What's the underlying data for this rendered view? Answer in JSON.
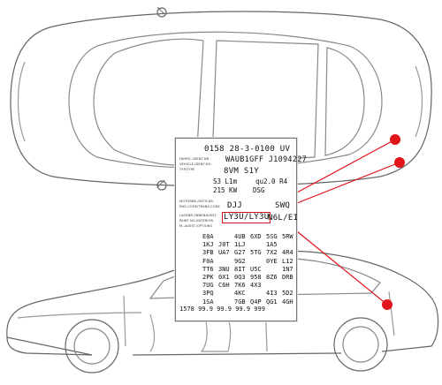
{
  "label": {
    "line1": "0158 28-3-0100  UV",
    "line2": "WAUB1GFF J1094227",
    "line3": "8VM S1Y",
    "line4a": "S3 L1m",
    "line4b": "qu2.0  R4",
    "line5a": "215 KW",
    "line5b": "DSG",
    "line6a": "DJJ",
    "line6b": "SWQ",
    "line7a": "LY3U/LY3U",
    "line7b": "N6L/EI",
    "tiny1": "FAHRG.-IDENT-NR.",
    "tiny2": "VEHICLE-IDENT-NO.",
    "tiny3": "TYP/TYPE",
    "tiny4": "MOTORKB./GETR.KB.",
    "tiny5": "ENG.CODE/TRANS.CODE",
    "tiny6": "LACKNR./INNENAUSST.",
    "tiny7": "PAINT NO./INTERIOR",
    "tiny8": "M.-AUSST./OPTIONS",
    "options": [
      [
        "E0A",
        "",
        "4UB",
        "6XD",
        "5SG",
        "5RW"
      ],
      [
        "1KJ",
        "J0T",
        "1LJ",
        "",
        "1A5",
        ""
      ],
      [
        "3FB",
        "UA7",
        "G27",
        "5TG",
        "7X2",
        "4R4"
      ],
      [
        "F0A",
        "",
        "9G2",
        "",
        "0YE",
        "L12"
      ],
      [
        "TT6",
        "3NU",
        "8IT",
        "U5C",
        "",
        "1N7"
      ],
      [
        "2PK",
        "0X1",
        "0Q3",
        "958",
        "8Z6",
        "DRB"
      ],
      [
        "7UG",
        "C6H",
        "7K6",
        "4X3",
        "",
        ""
      ],
      [
        "3PQ",
        "",
        "4KC",
        "",
        "4I3",
        "5D2"
      ],
      [
        "1SA",
        "",
        "7GB",
        "Q4P",
        "QG1",
        "4GH"
      ]
    ],
    "last_row": "1578 99.9 99.9 99.9    999"
  },
  "colors": {
    "accent": "#e2141c",
    "line": "#555555"
  }
}
